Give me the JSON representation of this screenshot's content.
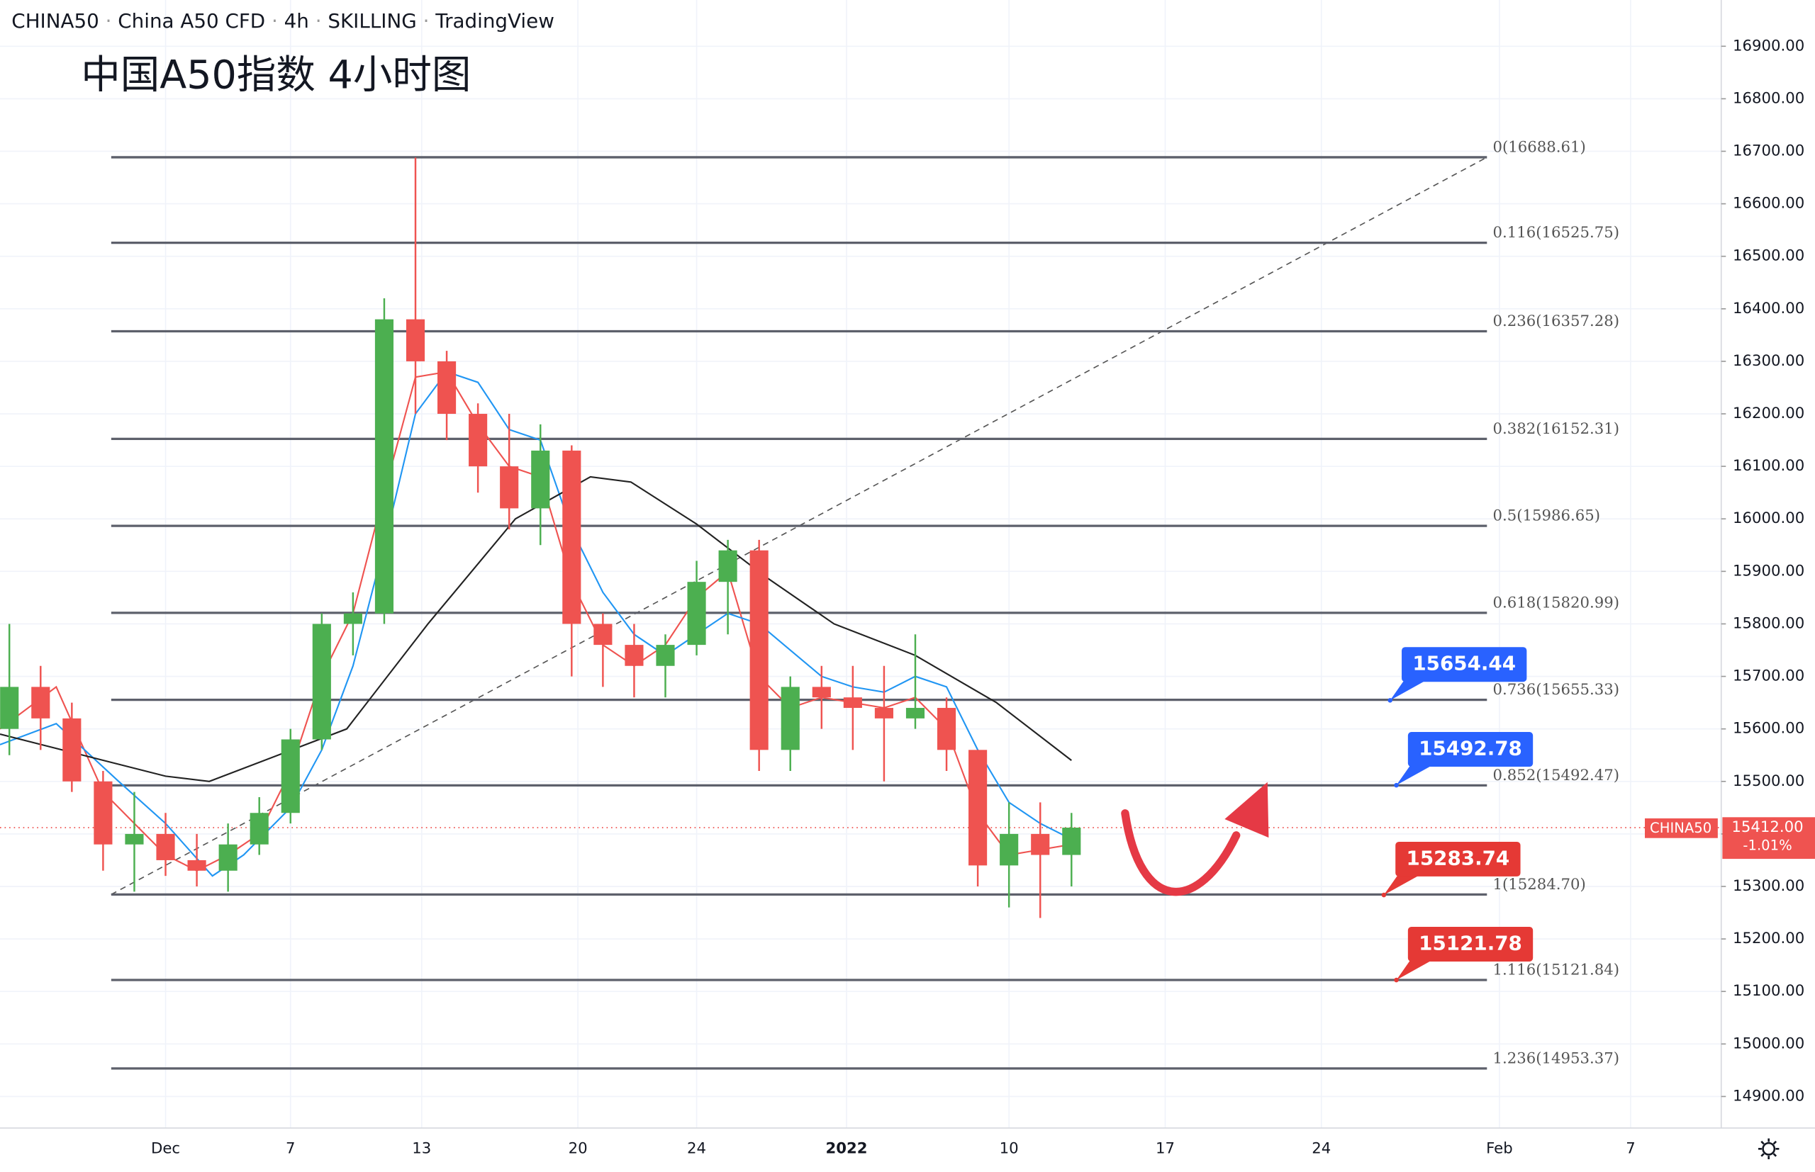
{
  "chart_data": {
    "type": "candlestick",
    "header": [
      "CHINA50",
      "China A50 CFD",
      "4h",
      "SKILLING",
      "TradingView"
    ],
    "title": "中国A50指数 4小时图",
    "x": [
      -5,
      -4,
      -3,
      -2,
      -1,
      0,
      1,
      2,
      3,
      4,
      5,
      6,
      7,
      8,
      9,
      10,
      11,
      12,
      13,
      14,
      15,
      16,
      17,
      18,
      19,
      20,
      21,
      22,
      23,
      24,
      25,
      26,
      27,
      28,
      29
    ],
    "open": [
      15600,
      15680,
      15620,
      15500,
      15380,
      15400,
      15350,
      15330,
      15380,
      15440,
      15580,
      15800,
      15820,
      16380,
      16300,
      16200,
      16100,
      16020,
      16130,
      15800,
      15760,
      15720,
      15760,
      15880,
      15940,
      15560,
      15680,
      15660,
      15640,
      15620,
      15640,
      15560,
      15340,
      15400,
      15360
    ],
    "high": [
      15800,
      15720,
      15650,
      15520,
      15480,
      15440,
      15400,
      15420,
      15470,
      15600,
      15820,
      15860,
      16420,
      16688,
      16320,
      16220,
      16200,
      16180,
      16140,
      15820,
      15800,
      15780,
      15920,
      15960,
      15960,
      15700,
      15720,
      15720,
      15720,
      15780,
      15660,
      15560,
      15460,
      15460,
      15440
    ],
    "low": [
      15550,
      15560,
      15480,
      15330,
      15290,
      15320,
      15300,
      15290,
      15360,
      15420,
      15560,
      15740,
      15800,
      16200,
      16150,
      16050,
      15980,
      15950,
      15700,
      15680,
      15660,
      15660,
      15740,
      15780,
      15520,
      15520,
      15600,
      15560,
      15500,
      15600,
      15520,
      15300,
      15260,
      15240,
      15300
    ],
    "close": [
      15680,
      15620,
      15500,
      15380,
      15400,
      15350,
      15330,
      15380,
      15440,
      15580,
      15800,
      15820,
      16380,
      16300,
      16200,
      16100,
      16020,
      16130,
      15800,
      15760,
      15720,
      15760,
      15880,
      15940,
      15560,
      15680,
      15660,
      15640,
      15620,
      15640,
      15560,
      15340,
      15400,
      15360,
      15412
    ],
    "up_color": "#4caf50",
    "down_color": "#ef5350",
    "moving_averages": [
      {
        "color": "#ef5350",
        "x": [
          -5.3,
          -3.5,
          -2,
          -1,
          0,
          1,
          2,
          3,
          4,
          5,
          6,
          7,
          8,
          9,
          10,
          11,
          12,
          13,
          14,
          15,
          16,
          17,
          18,
          19,
          20,
          21,
          22,
          23,
          24,
          25,
          26,
          27,
          28,
          29
        ],
        "values": [
          15600,
          15680,
          15480,
          15420,
          15360,
          15330,
          15360,
          15400,
          15520,
          15700,
          15820,
          16050,
          16270,
          16280,
          16180,
          16100,
          16080,
          15880,
          15760,
          15720,
          15760,
          15850,
          15900,
          15700,
          15640,
          15660,
          15650,
          15640,
          15660,
          15600,
          15440,
          15360,
          15370,
          15380
        ]
      },
      {
        "color": "#2196f3",
        "x": [
          -5.3,
          -3.5,
          -1.5,
          0,
          1.5,
          2.5,
          4,
          5,
          6,
          7,
          8,
          9,
          10,
          11,
          12,
          13,
          14,
          15,
          16,
          17,
          18,
          19,
          20,
          21,
          22,
          23,
          24,
          25,
          26,
          27,
          28,
          29
        ],
        "values": [
          15570,
          15610,
          15500,
          15420,
          15320,
          15360,
          15450,
          15560,
          15720,
          15950,
          16200,
          16280,
          16260,
          16170,
          16150,
          15980,
          15860,
          15780,
          15740,
          15780,
          15820,
          15800,
          15750,
          15700,
          15680,
          15670,
          15700,
          15680,
          15560,
          15460,
          15420,
          15390
        ]
      },
      {
        "color": "#222222",
        "x": [
          -5.3,
          0,
          1.4,
          5.8,
          8.4,
          11.2,
          13.6,
          14.9,
          17,
          19.2,
          21.4,
          24,
          26.6,
          29
        ],
        "values": [
          15590,
          15510,
          15500,
          15600,
          15800,
          16000,
          16080,
          16070,
          15990,
          15890,
          15800,
          15740,
          15650,
          15540
        ]
      }
    ],
    "fib_x": [
      -1.74,
      42.3
    ],
    "fib_levels": [
      {
        "value": 16688.61,
        "label": "0(16688.61)"
      },
      {
        "value": 16525.75,
        "label": "0.116(16525.75)"
      },
      {
        "value": 16357.28,
        "label": "0.236(16357.28)"
      },
      {
        "value": 16152.31,
        "label": "0.382(16152.31)"
      },
      {
        "value": 15986.65,
        "label": "0.5(15986.65)"
      },
      {
        "value": 15820.99,
        "label": "0.618(15820.99)"
      },
      {
        "value": 15655.33,
        "label": "0.736(15655.33)"
      },
      {
        "value": 15492.47,
        "label": "0.852(15492.47)"
      },
      {
        "value": 15284.7,
        "label": "1(15284.70)"
      },
      {
        "value": 15121.84,
        "label": "1.116(15121.84)"
      },
      {
        "value": 14953.37,
        "label": "1.236(14953.37)"
      }
    ],
    "callouts": [
      {
        "value": 15654.44,
        "x": 39.2,
        "color": "#2962ff"
      },
      {
        "value": 15492.78,
        "x": 39.4,
        "color": "#2962ff"
      },
      {
        "value": 15283.74,
        "x": 39,
        "color": "#e53935"
      },
      {
        "value": 15121.78,
        "x": 39.4,
        "color": "#e53935"
      }
    ],
    "last_price": {
      "symbol": "CHINA50",
      "value": 15412,
      "value_label": "15412.00",
      "change": "-1.01%",
      "color": "#ef5350"
    },
    "xlim": [
      -5.3,
      49.8
    ],
    "ylim": [
      14840,
      16988
    ],
    "xticks": [
      {
        "value": 0,
        "label": "Dec"
      },
      {
        "value": 4,
        "label": "7"
      },
      {
        "value": 8.2,
        "label": "13"
      },
      {
        "value": 13.2,
        "label": "20"
      },
      {
        "value": 17,
        "label": "24"
      },
      {
        "value": 21.8,
        "label": "2022"
      },
      {
        "value": 27,
        "label": "10"
      },
      {
        "value": 32,
        "label": "17"
      },
      {
        "value": 37,
        "label": "24"
      },
      {
        "value": 42.7,
        "label": "Feb"
      },
      {
        "value": 46.9,
        "label": "7"
      }
    ],
    "yticks": [
      {
        "value": 14900,
        "label": "14900.00"
      },
      {
        "value": 15000,
        "label": "15000.00"
      },
      {
        "value": 15100,
        "label": "15100.00"
      },
      {
        "value": 15200,
        "label": "15200.00"
      },
      {
        "value": 15300,
        "label": "15300.00"
      },
      {
        "value": 15400,
        "label": "15400.00"
      },
      {
        "value": 15500,
        "label": "15500.00"
      },
      {
        "value": 15600,
        "label": "15600.00"
      },
      {
        "value": 15700,
        "label": "15700.00"
      },
      {
        "value": 15800,
        "label": "15800.00"
      },
      {
        "value": 15900,
        "label": "15900.00"
      },
      {
        "value": 16000,
        "label": "16000.00"
      },
      {
        "value": 16100,
        "label": "16100.00"
      },
      {
        "value": 16200,
        "label": "16200.00"
      },
      {
        "value": 16300,
        "label": "16300.00"
      },
      {
        "value": 16400,
        "label": "16400.00"
      },
      {
        "value": 16500,
        "label": "16500.00"
      },
      {
        "value": 16600,
        "label": "16600.00"
      },
      {
        "value": 16700,
        "label": "16700.00"
      },
      {
        "value": 16800,
        "label": "16800.00"
      },
      {
        "value": 16900,
        "label": "16900.00"
      }
    ],
    "grid": true
  }
}
